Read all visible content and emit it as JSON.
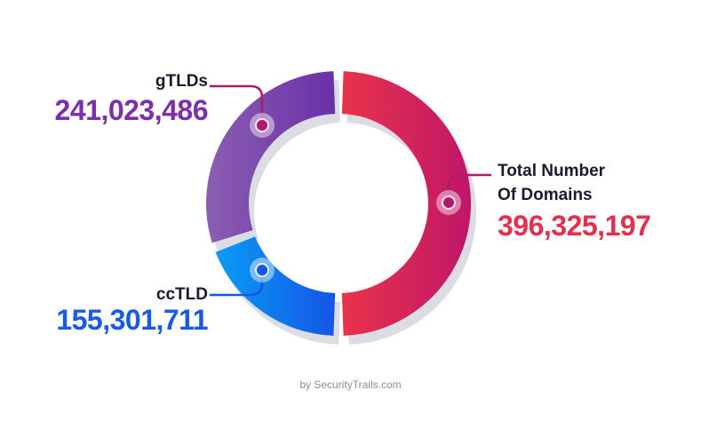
{
  "chart_data": {
    "type": "pie",
    "categories": [
      "Total Number Of Domains",
      "ccTLD",
      "gTLDs"
    ],
    "values": [
      396325197,
      155301711,
      241023486
    ],
    "labels": {
      "total": {
        "name_line1": "Total Number",
        "name_line2": "Of Domains",
        "value": "396,325,197"
      },
      "cctld": {
        "name": "ccTLD",
        "value": "155,301,711"
      },
      "gtlds": {
        "name": "gTLDs",
        "value": "241,023,486"
      }
    },
    "colors": {
      "total": [
        "#e8334a",
        "#c0166a"
      ],
      "cctld": [
        "#0a9cf5",
        "#1456e6"
      ],
      "gtlds": [
        "#8a5fb0",
        "#6a2fa8"
      ],
      "shadow": "#dcdde3",
      "connector": "#b01a6e"
    },
    "legend": "none"
  },
  "footer": {
    "credit": "by SecurityTrails.com"
  }
}
